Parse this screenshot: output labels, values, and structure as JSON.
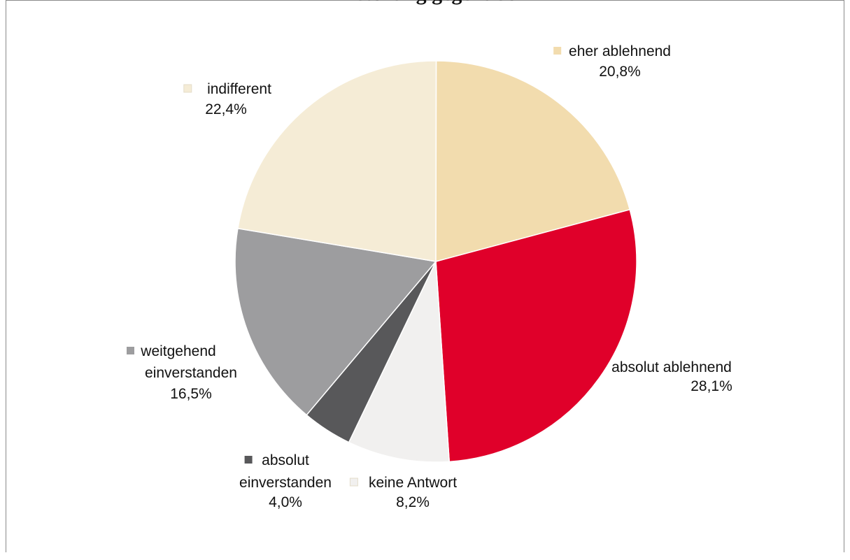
{
  "chart_data": {
    "type": "pie",
    "title": "Einstellung gegenüber",
    "slices": [
      {
        "label": "absolut ablehnend",
        "value": 28.1,
        "value_label": "28,1%",
        "color": "#e0002a"
      },
      {
        "label": "keine Antwort",
        "value": 8.2,
        "value_label": "8,2%",
        "color": "#f1f0ef"
      },
      {
        "label": "absolut einverstanden",
        "value": 4.0,
        "value_label": "4,0%",
        "color": "#58585a"
      },
      {
        "label": "weitgehend einverstanden",
        "value": 16.5,
        "value_label": "16,5%",
        "color": "#9d9d9f"
      },
      {
        "label": "indifferent",
        "value": 22.4,
        "value_label": "22,4%",
        "color": "#f5ecd6"
      },
      {
        "label": "eher ablehnend",
        "value": 20.8,
        "value_label": "20,8%",
        "color": "#f2dcae"
      }
    ],
    "legend": "labels next to slices"
  }
}
